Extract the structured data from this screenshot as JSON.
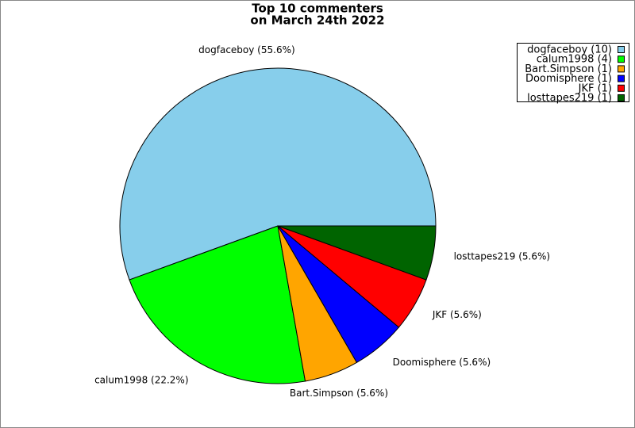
{
  "chart_data": {
    "type": "pie",
    "title": "Top 10 commenters",
    "subtitle": "on March 24th 2022",
    "values": [
      10,
      4,
      1,
      1,
      1,
      1
    ],
    "value_labels": [
      "dogfaceboy (55.6%)",
      "calum1998 (22.2%)",
      "Bart.Simpson (5.6%)",
      "Doomisphere (5.6%)",
      "JKF (5.6%)",
      "losttapes219 (5.6%)"
    ],
    "legend": [
      "dogfaceboy (10)",
      "calum1998 (4)",
      "Bart.Simpson (1)",
      "Doomisphere (1)",
      "JKF (1)",
      "losttapes219 (1)"
    ],
    "colors": [
      "#87ceeb",
      "#00ff00",
      "#ffa500",
      "#0000ff",
      "#ff0000",
      "#006400"
    ],
    "legend_position": "upper right"
  }
}
